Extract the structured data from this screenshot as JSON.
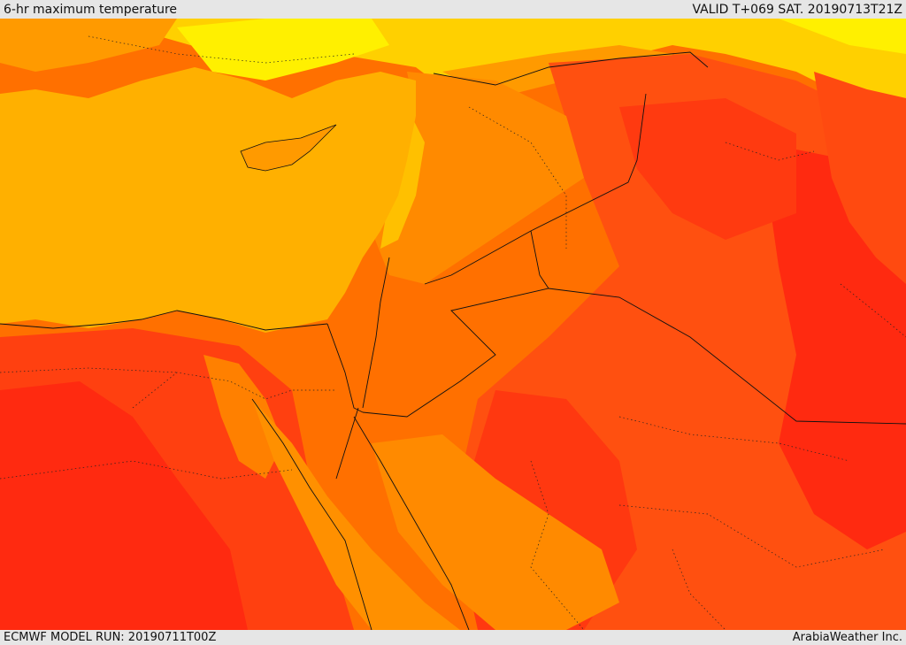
{
  "header": {
    "title": "6-hr maximum temperature",
    "valid": "VALID T+069 SAT. 20190713T21Z"
  },
  "footer": {
    "model_run": "ECMWF MODEL RUN: 20190711T00Z",
    "credit": "ArabiaWeather Inc."
  },
  "colors": {
    "sea": "#ffb000",
    "yellow": "#ffe800",
    "light_orange": "#ff9000",
    "orange": "#ff6a00",
    "red_orange": "#ff4a10",
    "red": "#ff2a10",
    "border": "#111111"
  }
}
